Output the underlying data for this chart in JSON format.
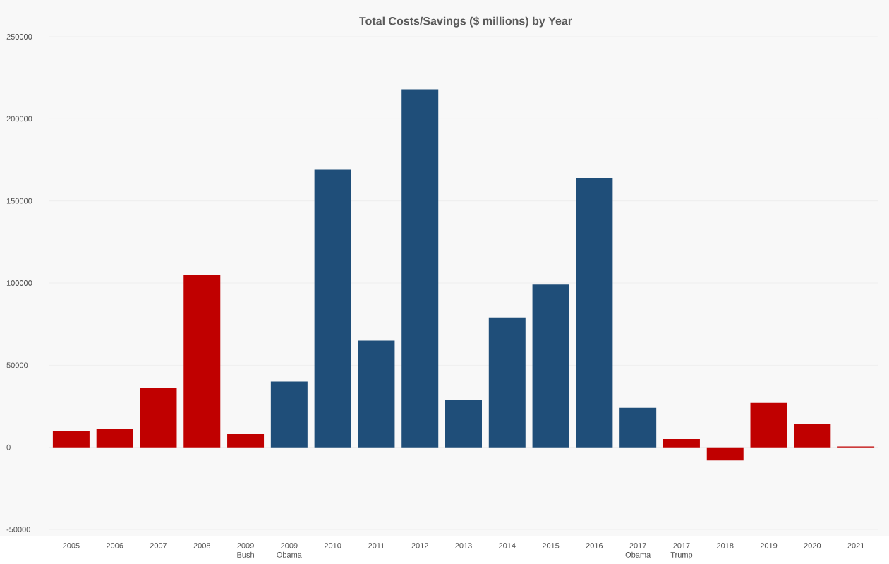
{
  "chart_data": {
    "type": "bar",
    "title": "Total Costs/Savings ($ millions) by Year",
    "categories": [
      "2005",
      "2006",
      "2007",
      "2008",
      "2009 Bush",
      "2009 Obama",
      "2010",
      "2011",
      "2012",
      "2013",
      "2014",
      "2015",
      "2016",
      "2017 Obama",
      "2017 Trump",
      "2018",
      "2019",
      "2020",
      "2021"
    ],
    "values": [
      10000,
      11000,
      36000,
      105000,
      8000,
      40000,
      169000,
      65000,
      218000,
      29000,
      79000,
      99000,
      164000,
      24000,
      5000,
      -8000,
      27000,
      14000,
      500
    ],
    "colors": [
      "#c00000",
      "#c00000",
      "#c00000",
      "#c00000",
      "#c00000",
      "#1f4e79",
      "#1f4e79",
      "#1f4e79",
      "#1f4e79",
      "#1f4e79",
      "#1f4e79",
      "#1f4e79",
      "#1f4e79",
      "#1f4e79",
      "#c00000",
      "#c00000",
      "#c00000",
      "#c00000",
      "#c00000"
    ],
    "ylim": [
      -50000,
      250000
    ],
    "yticks": [
      -50000,
      0,
      50000,
      100000,
      150000,
      200000,
      250000
    ],
    "grid": "y"
  }
}
